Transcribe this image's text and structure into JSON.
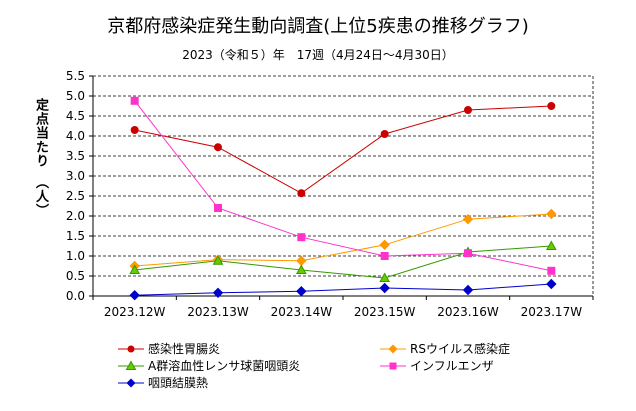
{
  "chart_data": {
    "type": "line",
    "title": "京都府感染症発生動向調査(上位5疾患の推移グラフ)",
    "subtitle": "2023（令和５）年　17週（4月24日～4月30日）",
    "ylabel": "定点当たり　（人）",
    "xlabel": "",
    "categories": [
      "2023.12W",
      "2023.13W",
      "2023.14W",
      "2023.15W",
      "2023.16W",
      "2023.17W"
    ],
    "ylim": [
      0,
      5.5
    ],
    "yticks": [
      "0.0",
      "0.5",
      "1.0",
      "1.5",
      "2.0",
      "2.5",
      "3.0",
      "3.5",
      "4.0",
      "4.5",
      "5.0",
      "5.5"
    ],
    "grid": true,
    "legend_position": "bottom",
    "series": [
      {
        "name": "感染性胃腸炎",
        "color": "#cc0000",
        "marker": "circle",
        "values": [
          4.15,
          3.72,
          2.57,
          4.05,
          4.65,
          4.75
        ]
      },
      {
        "name": "RSウイルス感染症",
        "color": "#ff9900",
        "marker": "diamond",
        "values": [
          0.75,
          0.91,
          0.88,
          1.28,
          1.92,
          2.05
        ]
      },
      {
        "name": "A群溶血性レンサ球菌咽頭炎",
        "color": "#339900",
        "marker": "triangle",
        "values": [
          0.65,
          0.88,
          0.65,
          0.45,
          1.1,
          1.25
        ]
      },
      {
        "name": "インフルエンザ",
        "color": "#ff33cc",
        "marker": "square",
        "values": [
          4.88,
          2.2,
          1.47,
          1.0,
          1.07,
          0.63
        ]
      },
      {
        "name": "咽頭結膜熱",
        "color": "#0000cc",
        "marker": "diamond",
        "values": [
          0.02,
          0.08,
          0.12,
          0.2,
          0.15,
          0.3
        ]
      }
    ]
  }
}
